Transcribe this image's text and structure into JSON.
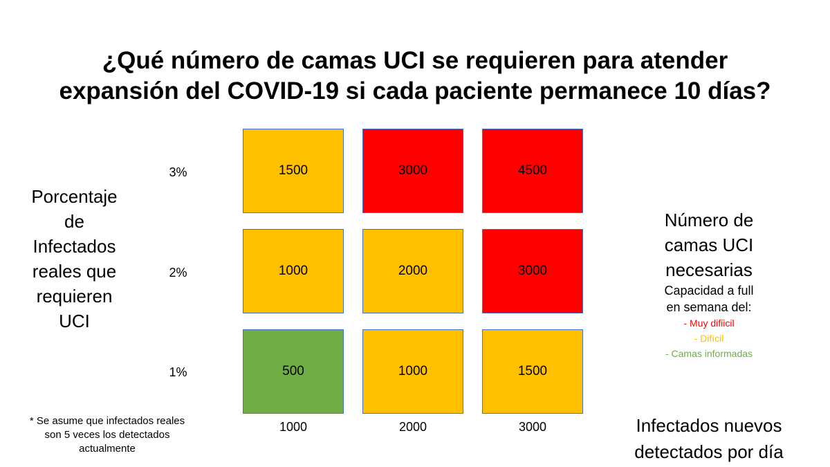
{
  "title": {
    "line1": "¿Qué número de camas UCI se requieren para atender",
    "line2": "expansión del COVID-19 si cada paciente permanece 10 días?"
  },
  "y_axis": {
    "label_lines": [
      "Porcentaje",
      "de",
      "Infectados",
      "reales que",
      "requieren",
      "UCI"
    ],
    "ticks": [
      "3%",
      "2%",
      "1%"
    ]
  },
  "x_axis": {
    "label_lines": [
      "Infectados nuevos",
      "detectados por día"
    ],
    "ticks": [
      "1000",
      "2000",
      "3000"
    ]
  },
  "colors": {
    "very_difficult": "#ff0000",
    "difficult": "#ffc000",
    "informed": "#70ad47",
    "cell_border": "#4472c4"
  },
  "grid": {
    "rows": [
      {
        "cells": [
          {
            "value": "1500",
            "status": "difficult"
          },
          {
            "value": "3000",
            "status": "very_difficult"
          },
          {
            "value": "4500",
            "status": "very_difficult"
          }
        ]
      },
      {
        "cells": [
          {
            "value": "1000",
            "status": "difficult"
          },
          {
            "value": "2000",
            "status": "difficult"
          },
          {
            "value": "3000",
            "status": "very_difficult"
          }
        ]
      },
      {
        "cells": [
          {
            "value": "500",
            "status": "informed"
          },
          {
            "value": "1000",
            "status": "difficult"
          },
          {
            "value": "1500",
            "status": "difficult"
          }
        ]
      }
    ]
  },
  "legend": {
    "title_lines": [
      "Número de",
      "camas UCI",
      "necesarias"
    ],
    "subtitle_lines": [
      "Capacidad a full",
      "en semana del:"
    ],
    "items": [
      {
        "label": "- Muy difiicil",
        "status": "very_difficult"
      },
      {
        "label": "- Difícil",
        "status": "difficult"
      },
      {
        "label": "- Camas informadas",
        "status": "informed"
      }
    ]
  },
  "footnote": {
    "lines": [
      "* Se asume que infectados reales",
      "son 5 veces los detectados",
      "actualmente"
    ]
  }
}
